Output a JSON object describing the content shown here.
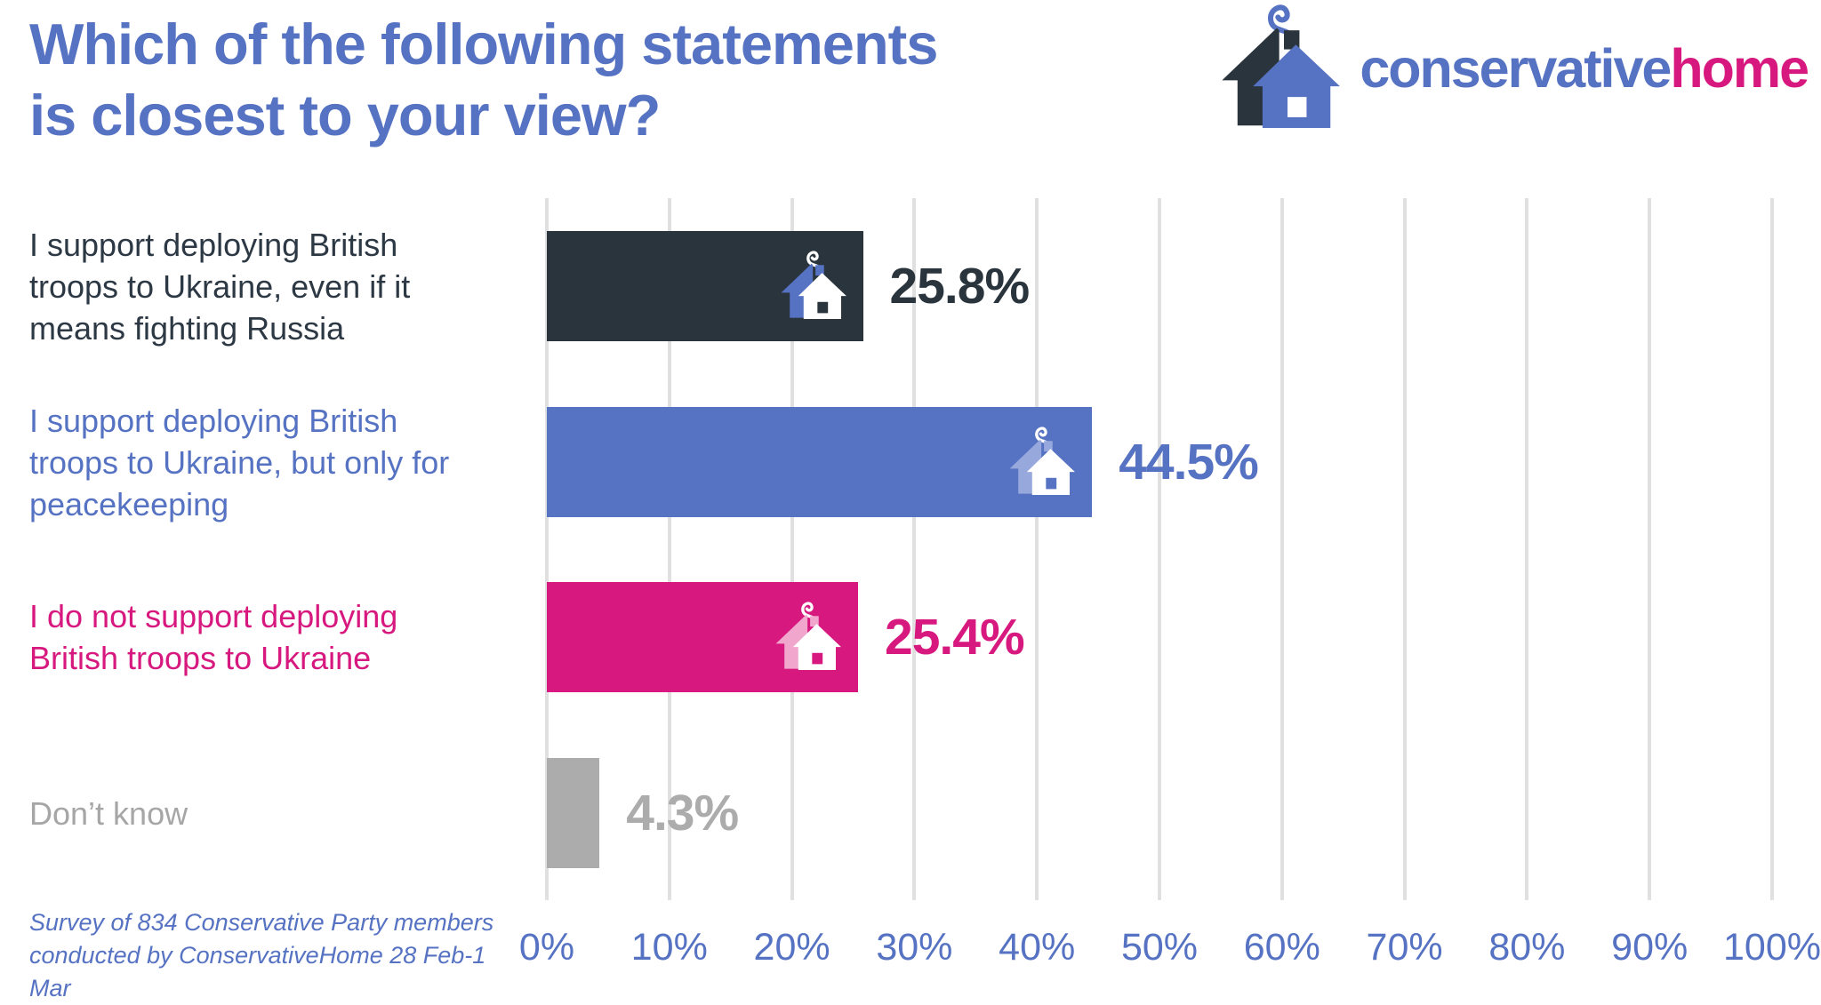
{
  "header": {
    "title_line1": "Which of the following statements",
    "title_line2": "is closest to your view?"
  },
  "logo": {
    "brand_part1": "conservative",
    "brand_part2": "home"
  },
  "chart_data": {
    "type": "bar",
    "orientation": "horizontal",
    "title": "Which of the following statements is closest to your view?",
    "categories": [
      "I support deploying British troops to Ukraine, even if it means fighting Russia",
      "I support deploying British troops to Ukraine, but only for peacekeeping",
      "I do not support deploying British troops to Ukraine",
      "Don’t know"
    ],
    "values": [
      25.8,
      44.5,
      25.4,
      4.3
    ],
    "value_labels": [
      "25.8%",
      "44.5%",
      "25.4%",
      "4.3%"
    ],
    "xlim": [
      0,
      100
    ],
    "x_tick_labels": [
      "0%",
      "10%",
      "20%",
      "30%",
      "40%",
      "50%",
      "60%",
      "70%",
      "80%",
      "90%",
      "100%"
    ],
    "grid": "vertical gridlines at 10% intervals",
    "legend": "none",
    "bar_colors": [
      "#2A343C",
      "#5672C2",
      "#D7197F",
      "#ACACAC"
    ],
    "source_note": "Survey of 834 Conservative Party members conducted by ConservativeHome 28 Feb-1 Mar"
  },
  "colors": {
    "accent_blue": "#5672C2",
    "accent_pink": "#D7197F",
    "dark_navy": "#2A343C",
    "gray_bar": "#ACACAC",
    "gridline": "#E0E0E0"
  }
}
